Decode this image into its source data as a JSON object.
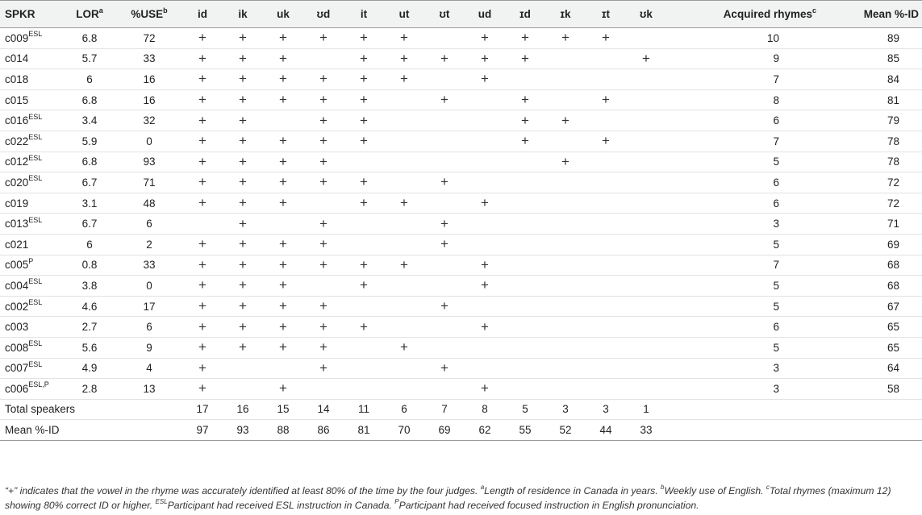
{
  "headers": [
    {
      "label": "SPKR",
      "sup": ""
    },
    {
      "label": "LOR",
      "sup": "a"
    },
    {
      "label": "%USE",
      "sup": "b"
    },
    {
      "label": "id",
      "sup": ""
    },
    {
      "label": "ik",
      "sup": ""
    },
    {
      "label": "uk",
      "sup": ""
    },
    {
      "label": "ʊd",
      "sup": ""
    },
    {
      "label": "it",
      "sup": ""
    },
    {
      "label": "ut",
      "sup": ""
    },
    {
      "label": "ʊt",
      "sup": ""
    },
    {
      "label": "ud",
      "sup": ""
    },
    {
      "label": "ɪd",
      "sup": ""
    },
    {
      "label": "ɪk",
      "sup": ""
    },
    {
      "label": "ɪt",
      "sup": ""
    },
    {
      "label": "ʊk",
      "sup": ""
    },
    {
      "label": "Acquired rhymes",
      "sup": "c"
    },
    {
      "label": "Mean %-ID",
      "sup": ""
    }
  ],
  "plus_symbol": "+",
  "rows": [
    {
      "id": "c009",
      "sup": "ESL",
      "lor": "6.8",
      "use": "72",
      "marks": [
        1,
        1,
        1,
        1,
        1,
        1,
        0,
        1,
        1,
        1,
        1,
        0
      ],
      "acquired": "10",
      "mean": "89"
    },
    {
      "id": "c014",
      "sup": "",
      "lor": "5.7",
      "use": "33",
      "marks": [
        1,
        1,
        1,
        0,
        1,
        1,
        1,
        1,
        1,
        0,
        0,
        1
      ],
      "acquired": "9",
      "mean": "85"
    },
    {
      "id": "c018",
      "sup": "",
      "lor": "6",
      "use": "16",
      "marks": [
        1,
        1,
        1,
        1,
        1,
        1,
        0,
        1,
        0,
        0,
        0,
        0
      ],
      "acquired": "7",
      "mean": "84"
    },
    {
      "id": "c015",
      "sup": "",
      "lor": "6.8",
      "use": "16",
      "marks": [
        1,
        1,
        1,
        1,
        1,
        0,
        1,
        0,
        1,
        0,
        1,
        0
      ],
      "acquired": "8",
      "mean": "81"
    },
    {
      "id": "c016",
      "sup": "ESL",
      "lor": "3.4",
      "use": "32",
      "marks": [
        1,
        1,
        0,
        1,
        1,
        0,
        0,
        0,
        1,
        1,
        0,
        0
      ],
      "acquired": "6",
      "mean": "79"
    },
    {
      "id": "c022",
      "sup": "ESL",
      "lor": "5.9",
      "use": "0",
      "marks": [
        1,
        1,
        1,
        1,
        1,
        0,
        0,
        0,
        1,
        0,
        1,
        0
      ],
      "acquired": "7",
      "mean": "78"
    },
    {
      "id": "c012",
      "sup": "ESL",
      "lor": "6.8",
      "use": "93",
      "marks": [
        1,
        1,
        1,
        1,
        0,
        0,
        0,
        0,
        0,
        1,
        0,
        0
      ],
      "acquired": "5",
      "mean": "78"
    },
    {
      "id": "c020",
      "sup": "ESL",
      "lor": "6.7",
      "use": "71",
      "marks": [
        1,
        1,
        1,
        1,
        1,
        0,
        1,
        0,
        0,
        0,
        0,
        0
      ],
      "acquired": "6",
      "mean": "72"
    },
    {
      "id": "c019",
      "sup": "",
      "lor": "3.1",
      "use": "48",
      "marks": [
        1,
        1,
        1,
        0,
        1,
        1,
        0,
        1,
        0,
        0,
        0,
        0
      ],
      "acquired": "6",
      "mean": "72"
    },
    {
      "id": "c013",
      "sup": "ESL",
      "lor": "6.7",
      "use": "6",
      "marks": [
        0,
        1,
        0,
        1,
        0,
        0,
        1,
        0,
        0,
        0,
        0,
        0
      ],
      "acquired": "3",
      "mean": "71"
    },
    {
      "id": "c021",
      "sup": "",
      "lor": "6",
      "use": "2",
      "marks": [
        1,
        1,
        1,
        1,
        0,
        0,
        1,
        0,
        0,
        0,
        0,
        0
      ],
      "acquired": "5",
      "mean": "69"
    },
    {
      "id": "c005",
      "sup": "P",
      "lor": "0.8",
      "use": "33",
      "marks": [
        1,
        1,
        1,
        1,
        1,
        1,
        0,
        1,
        0,
        0,
        0,
        0
      ],
      "acquired": "7",
      "mean": "68"
    },
    {
      "id": "c004",
      "sup": "ESL",
      "lor": "3.8",
      "use": "0",
      "marks": [
        1,
        1,
        1,
        0,
        1,
        0,
        0,
        1,
        0,
        0,
        0,
        0
      ],
      "acquired": "5",
      "mean": "68"
    },
    {
      "id": "c002",
      "sup": "ESL",
      "lor": "4.6",
      "use": "17",
      "marks": [
        1,
        1,
        1,
        1,
        0,
        0,
        1,
        0,
        0,
        0,
        0,
        0
      ],
      "acquired": "5",
      "mean": "67"
    },
    {
      "id": "c003",
      "sup": "",
      "lor": "2.7",
      "use": "6",
      "marks": [
        1,
        1,
        1,
        1,
        1,
        0,
        0,
        1,
        0,
        0,
        0,
        0
      ],
      "acquired": "6",
      "mean": "65"
    },
    {
      "id": "c008",
      "sup": "ESL",
      "lor": "5.6",
      "use": "9",
      "marks": [
        1,
        1,
        1,
        1,
        0,
        1,
        0,
        0,
        0,
        0,
        0,
        0
      ],
      "acquired": "5",
      "mean": "65"
    },
    {
      "id": "c007",
      "sup": "ESL",
      "lor": "4.9",
      "use": "4",
      "marks": [
        1,
        0,
        0,
        1,
        0,
        0,
        1,
        0,
        0,
        0,
        0,
        0
      ],
      "acquired": "3",
      "mean": "64"
    },
    {
      "id": "c006",
      "sup": "ESL,P",
      "lor": "2.8",
      "use": "13",
      "marks": [
        1,
        0,
        1,
        0,
        0,
        0,
        0,
        1,
        0,
        0,
        0,
        0
      ],
      "acquired": "3",
      "mean": "58"
    }
  ],
  "totals": {
    "label": "Total speakers",
    "values": [
      "17",
      "16",
      "15",
      "14",
      "11",
      "6",
      "7",
      "8",
      "5",
      "3",
      "3",
      "1"
    ]
  },
  "means": {
    "label": "Mean %-ID",
    "values": [
      "97",
      "93",
      "88",
      "86",
      "81",
      "70",
      "69",
      "62",
      "55",
      "52",
      "44",
      "33"
    ]
  },
  "footnote": {
    "t1": "“+” indicates that the vowel in the rhyme was accurately identified at least 80% of the time by the four judges. ",
    "s1": "a",
    "t2": "Length of residence in Canada in years. ",
    "s2": "b",
    "t3": "Weekly use of English. ",
    "s3": "c",
    "t4": "Total rhymes (maximum 12) showing 80% correct ID or higher. ",
    "s4": "ESL",
    "t5": "Participant had received ESL instruction in Canada. ",
    "s5": "P",
    "t6": "Participant had received focused instruction in English pronunciation."
  }
}
